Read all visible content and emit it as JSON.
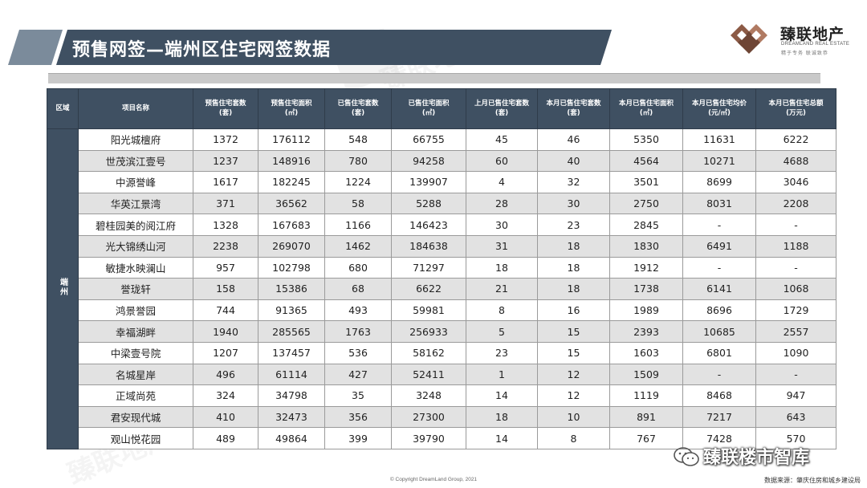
{
  "title": "预售网签—端州区住宅网签数据",
  "logo": {
    "name_cn": "臻联地产",
    "name_en": "DREAMLAND REAL ESTATE",
    "tagline": "精于专务 联诚致恭"
  },
  "watermark": "臻联地产",
  "table": {
    "headers": [
      "区域",
      "项目名称",
      "预售住宅套数\n(套)",
      "预售住宅面积\n(㎡)",
      "已售住宅套数\n(套)",
      "已售住宅面积\n(㎡)",
      "上月已售住宅套数\n(套)",
      "本月已售住宅套数\n(套)",
      "本月已售住宅面积\n(㎡)",
      "本月已售住宅均价\n(元/㎡)",
      "本月已售住宅总额\n(万元)"
    ],
    "region": "端州",
    "rows": [
      [
        "阳光城檀府",
        "1372",
        "176112",
        "548",
        "66755",
        "45",
        "46",
        "5350",
        "11631",
        "6222"
      ],
      [
        "世茂滨江壹号",
        "1237",
        "148916",
        "780",
        "94258",
        "60",
        "40",
        "4564",
        "10271",
        "4688"
      ],
      [
        "中源誉峰",
        "1617",
        "182245",
        "1224",
        "139907",
        "4",
        "32",
        "3501",
        "8699",
        "3046"
      ],
      [
        "华英江景湾",
        "371",
        "36562",
        "58",
        "5288",
        "28",
        "30",
        "2750",
        "8031",
        "2208"
      ],
      [
        "碧桂园美的阅江府",
        "1328",
        "167683",
        "1166",
        "146423",
        "30",
        "23",
        "2845",
        "-",
        "-"
      ],
      [
        "光大锦绣山河",
        "2238",
        "269070",
        "1462",
        "184638",
        "31",
        "18",
        "1830",
        "6491",
        "1188"
      ],
      [
        "敏捷水映澜山",
        "957",
        "102798",
        "680",
        "71297",
        "18",
        "18",
        "1912",
        "-",
        "-"
      ],
      [
        "誉珑轩",
        "158",
        "15386",
        "68",
        "6622",
        "21",
        "18",
        "1738",
        "6141",
        "1068"
      ],
      [
        "鸿景誉园",
        "744",
        "91365",
        "493",
        "59981",
        "8",
        "16",
        "1989",
        "8696",
        "1729"
      ],
      [
        "幸福湖畔",
        "1940",
        "285565",
        "1763",
        "256933",
        "5",
        "15",
        "2393",
        "10685",
        "2557"
      ],
      [
        "中梁壹号院",
        "1207",
        "137457",
        "536",
        "58162",
        "23",
        "15",
        "1603",
        "6801",
        "1090"
      ],
      [
        "名城星岸",
        "496",
        "61114",
        "427",
        "52411",
        "1",
        "12",
        "1509",
        "-",
        "-"
      ],
      [
        "正域尚苑",
        "324",
        "34798",
        "35",
        "3248",
        "14",
        "12",
        "1119",
        "8468",
        "947"
      ],
      [
        "君安现代城",
        "410",
        "32473",
        "356",
        "27300",
        "18",
        "10",
        "891",
        "7217",
        "643"
      ],
      [
        "观山悦花园",
        "489",
        "49864",
        "399",
        "39790",
        "14",
        "8",
        "767",
        "7428",
        "570"
      ]
    ]
  },
  "footer": {
    "copyright": "© Copyright DreamLand Group, 2021",
    "source": "数据来源：肇庆住房和城乡建设局",
    "wechat": "臻联楼市智库"
  },
  "colors": {
    "header_bg": "#3f5062",
    "row_alt": "#e2e2e2",
    "logo_brown": "#8c5a45"
  }
}
